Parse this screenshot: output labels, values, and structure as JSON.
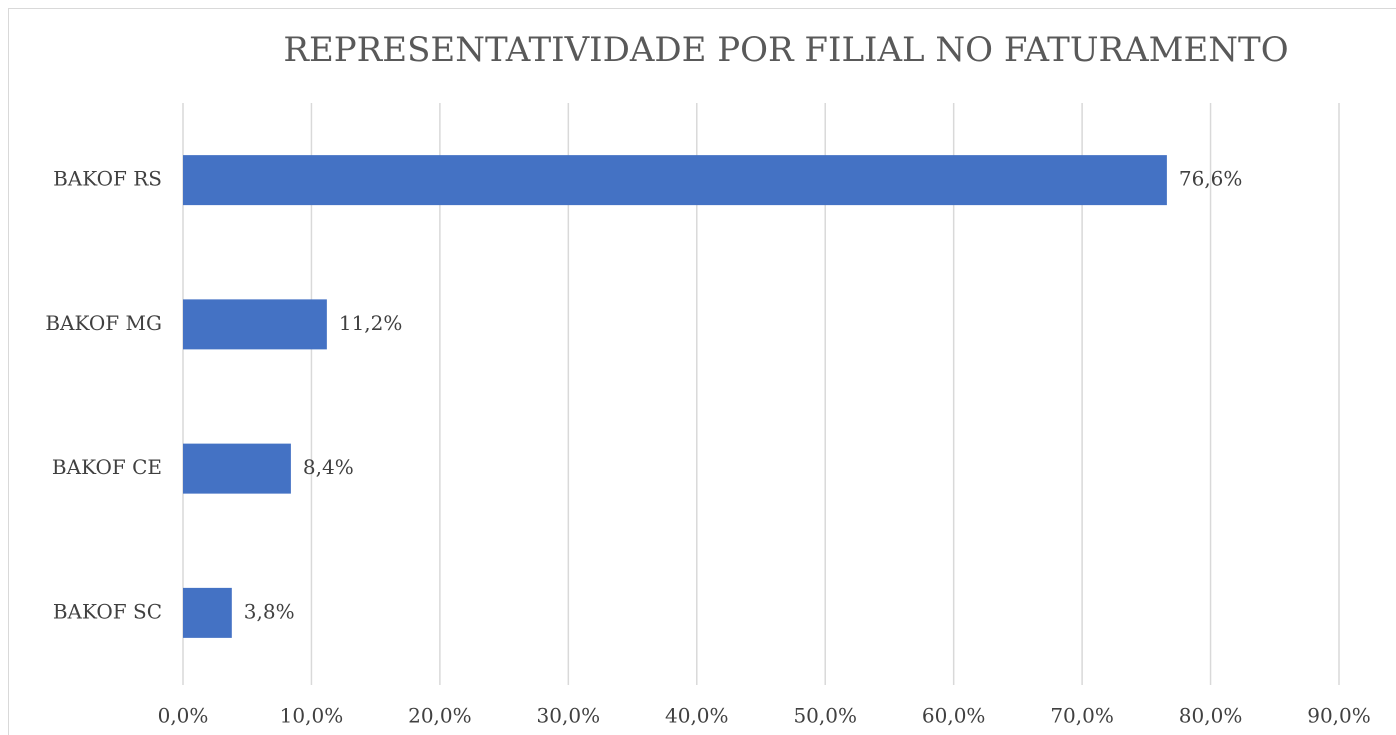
{
  "chart_data": {
    "type": "bar",
    "orientation": "horizontal",
    "title": "REPRESENTATIVIDADE POR FILIAL NO FATURAMENTO",
    "categories": [
      "BAKOF RS",
      "BAKOF MG",
      "BAKOF CE",
      "BAKOF SC"
    ],
    "values": [
      76.6,
      11.2,
      8.4,
      3.8
    ],
    "value_labels": [
      "76,6%",
      "11,2%",
      "8,4%",
      "3,8%"
    ],
    "color": "#4472c4",
    "xlim": [
      0,
      90
    ],
    "xticks": [
      {
        "value": 0,
        "label": "0,0%"
      },
      {
        "value": 10,
        "label": "10,0%"
      },
      {
        "value": 20,
        "label": "20,0%"
      },
      {
        "value": 30,
        "label": "30,0%"
      },
      {
        "value": 40,
        "label": "40,0%"
      },
      {
        "value": 50,
        "label": "50,0%"
      },
      {
        "value": 60,
        "label": "60,0%"
      },
      {
        "value": 70,
        "label": "70,0%"
      },
      {
        "value": 80,
        "label": "80,0%"
      },
      {
        "value": 90,
        "label": "90,0%"
      }
    ],
    "grid": true
  }
}
